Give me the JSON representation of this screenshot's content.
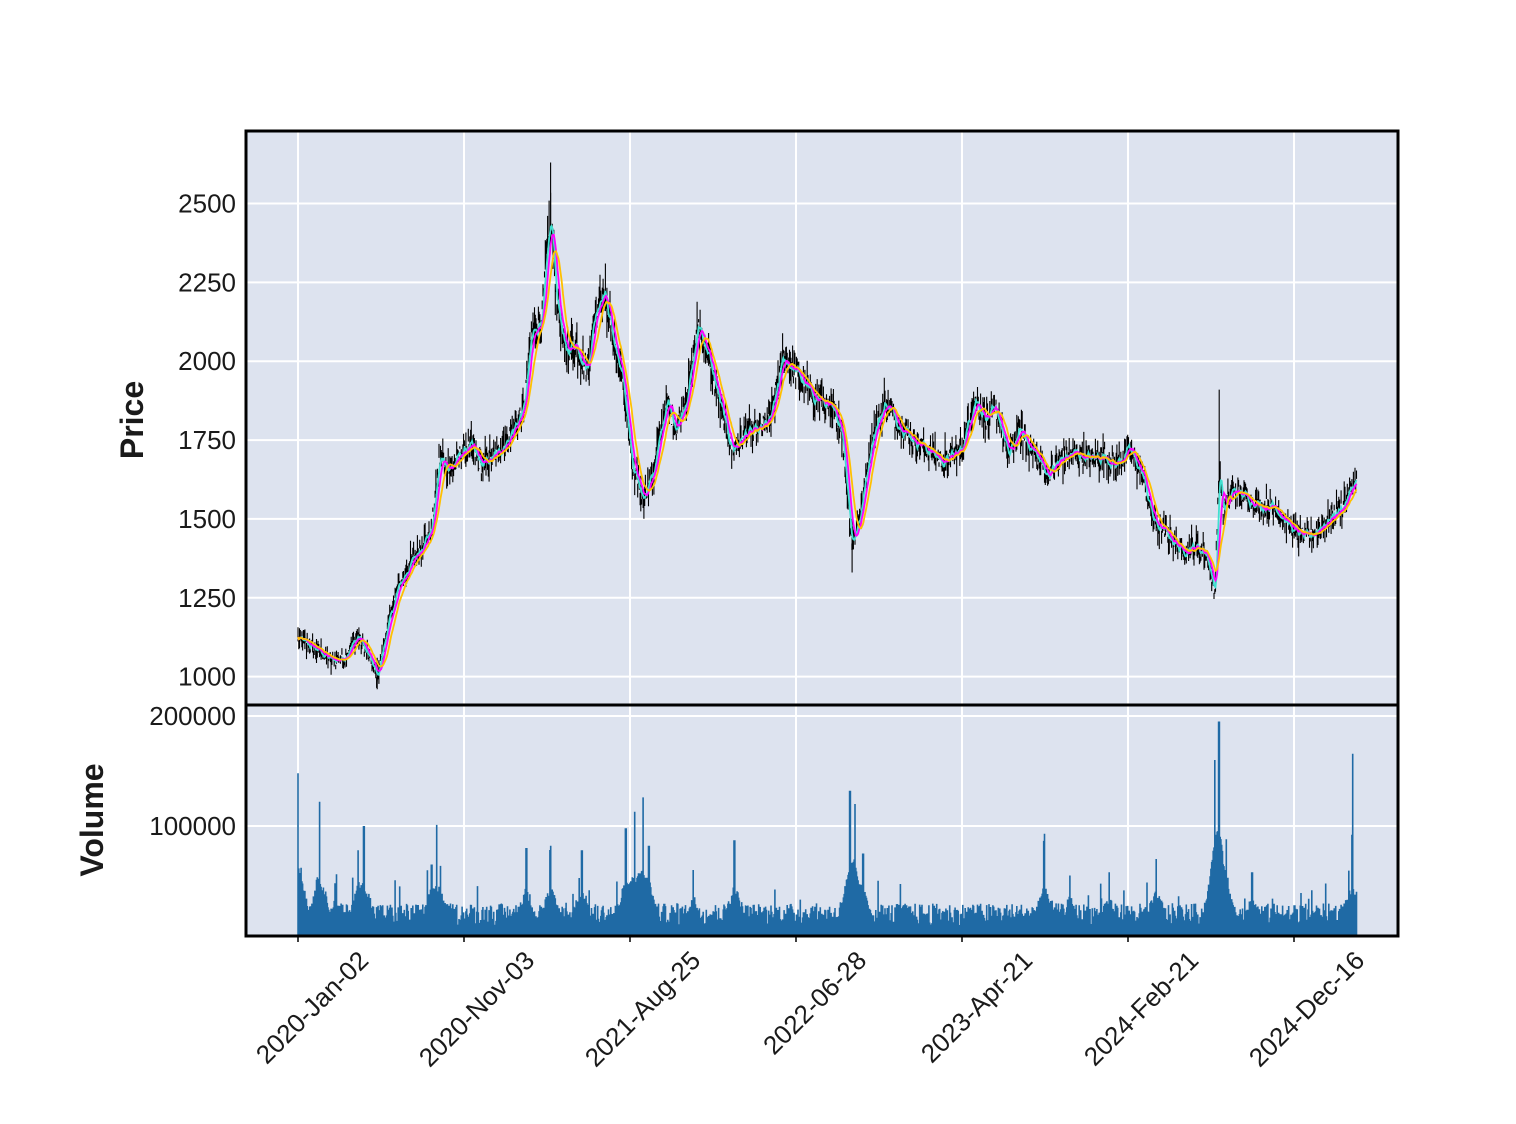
{
  "chart_data": {
    "type": "candlestick",
    "style": {
      "panel_background": "#dde3ef",
      "grid_color": "#ffffff",
      "frame_color": "#000000",
      "candle_color": "#000000",
      "volume_color": "#1f6aa5",
      "mav_colors": [
        "#40e0d0",
        "#ff00ff",
        "#ffc000"
      ]
    },
    "price_axis": {
      "label": "Price",
      "ylim": [
        910,
        2730
      ],
      "ticks": [
        1000,
        1250,
        1500,
        1750,
        2000,
        2250,
        2500
      ],
      "tick_labels": [
        "1000",
        "1250",
        "1500",
        "1750",
        "2000",
        "2250",
        "2500"
      ]
    },
    "volume_axis": {
      "label": "Volume",
      "ylim": [
        0,
        210000
      ],
      "ticks": [
        100000,
        200000
      ],
      "tick_labels": [
        "100000",
        "200000"
      ]
    },
    "x_axis": {
      "date_range": [
        "2020-01-02",
        "2025-04-10"
      ],
      "ticks": [
        "2020-01-02",
        "2020-11-03",
        "2021-08-25",
        "2022-06-28",
        "2023-04-21",
        "2024-02-21",
        "2024-12-16"
      ],
      "tick_labels": [
        "2020-Jan-02",
        "2020-Nov-03",
        "2021-Aug-25",
        "2022-06-28",
        "2023-Apr-21",
        "2024-Feb-21",
        "2024-Dec-16"
      ]
    },
    "price_series": {
      "name": "close",
      "points": [
        [
          "2020-01-02",
          1120
        ],
        [
          "2020-02-01",
          1090
        ],
        [
          "2020-03-05",
          1050
        ],
        [
          "2020-03-25",
          1060
        ],
        [
          "2020-04-20",
          1130
        ],
        [
          "2020-05-10",
          1060
        ],
        [
          "2020-05-25",
          1000
        ],
        [
          "2020-06-10",
          1140
        ],
        [
          "2020-07-01",
          1280
        ],
        [
          "2020-07-25",
          1360
        ],
        [
          "2020-08-15",
          1420
        ],
        [
          "2020-09-01",
          1470
        ],
        [
          "2020-09-15",
          1690
        ],
        [
          "2020-10-05",
          1660
        ],
        [
          "2020-10-25",
          1710
        ],
        [
          "2020-11-10",
          1730
        ],
        [
          "2020-12-01",
          1670
        ],
        [
          "2020-12-25",
          1700
        ],
        [
          "2021-01-20",
          1760
        ],
        [
          "2021-02-15",
          1850
        ],
        [
          "2021-03-01",
          2080
        ],
        [
          "2021-03-20",
          2140
        ],
        [
          "2021-04-05",
          2460
        ],
        [
          "2021-04-15",
          2220
        ],
        [
          "2021-04-30",
          2030
        ],
        [
          "2021-05-20",
          2060
        ],
        [
          "2021-06-10",
          1970
        ],
        [
          "2021-06-25",
          2160
        ],
        [
          "2021-07-10",
          2230
        ],
        [
          "2021-07-30",
          2050
        ],
        [
          "2021-08-15",
          1930
        ],
        [
          "2021-09-01",
          1650
        ],
        [
          "2021-09-20",
          1570
        ],
        [
          "2021-10-10",
          1660
        ],
        [
          "2021-11-01",
          1870
        ],
        [
          "2021-11-20",
          1790
        ],
        [
          "2021-12-10",
          1900
        ],
        [
          "2021-12-30",
          2120
        ],
        [
          "2022-01-20",
          1990
        ],
        [
          "2022-02-10",
          1840
        ],
        [
          "2022-03-01",
          1720
        ],
        [
          "2022-03-25",
          1770
        ],
        [
          "2022-04-20",
          1780
        ],
        [
          "2022-05-10",
          1820
        ],
        [
          "2022-06-01",
          2010
        ],
        [
          "2022-06-28",
          1960
        ],
        [
          "2022-07-20",
          1900
        ],
        [
          "2022-08-20",
          1860
        ],
        [
          "2022-09-15",
          1800
        ],
        [
          "2022-10-05",
          1420
        ],
        [
          "2022-10-20",
          1520
        ],
        [
          "2022-11-10",
          1760
        ],
        [
          "2022-12-05",
          1870
        ],
        [
          "2022-12-25",
          1810
        ],
        [
          "2023-01-25",
          1750
        ],
        [
          "2023-02-20",
          1720
        ],
        [
          "2023-03-20",
          1680
        ],
        [
          "2023-04-21",
          1720
        ],
        [
          "2023-05-15",
          1880
        ],
        [
          "2023-06-05",
          1820
        ],
        [
          "2023-06-25",
          1840
        ],
        [
          "2023-07-15",
          1700
        ],
        [
          "2023-08-05",
          1780
        ],
        [
          "2023-09-01",
          1710
        ],
        [
          "2023-09-25",
          1640
        ],
        [
          "2023-10-20",
          1690
        ],
        [
          "2023-11-15",
          1710
        ],
        [
          "2023-12-10",
          1690
        ],
        [
          "2024-01-05",
          1700
        ],
        [
          "2024-01-25",
          1670
        ],
        [
          "2024-02-21",
          1720
        ],
        [
          "2024-03-15",
          1640
        ],
        [
          "2024-04-05",
          1490
        ],
        [
          "2024-04-30",
          1450
        ],
        [
          "2024-05-25",
          1400
        ],
        [
          "2024-06-20",
          1410
        ],
        [
          "2024-07-10",
          1390
        ],
        [
          "2024-07-25",
          1260
        ],
        [
          "2024-08-02",
          1660
        ],
        [
          "2024-08-10",
          1520
        ],
        [
          "2024-08-25",
          1590
        ],
        [
          "2024-09-20",
          1570
        ],
        [
          "2024-10-15",
          1540
        ],
        [
          "2024-11-10",
          1540
        ],
        [
          "2024-12-16",
          1460
        ],
        [
          "2025-01-10",
          1440
        ],
        [
          "2025-02-05",
          1480
        ],
        [
          "2025-02-25",
          1510
        ],
        [
          "2025-03-15",
          1540
        ],
        [
          "2025-04-10",
          1640
        ]
      ]
    },
    "volume_series": {
      "name": "volume",
      "baseline": 22000,
      "spikes": [
        [
          "2020-01-02",
          148000
        ],
        [
          "2020-01-08",
          62000
        ],
        [
          "2020-02-10",
          122000
        ],
        [
          "2020-03-10",
          48000
        ],
        [
          "2020-05-01",
          100000
        ],
        [
          "2020-04-20",
          78000
        ],
        [
          "2020-09-10",
          101000
        ],
        [
          "2020-09-01",
          65000
        ],
        [
          "2021-02-20",
          80000
        ],
        [
          "2021-04-05",
          82000
        ],
        [
          "2021-06-01",
          78000
        ],
        [
          "2021-08-20",
          98000
        ],
        [
          "2021-09-05",
          113000
        ],
        [
          "2021-09-20",
          126000
        ],
        [
          "2021-10-01",
          82000
        ],
        [
          "2021-12-20",
          60000
        ],
        [
          "2022-03-05",
          87000
        ],
        [
          "2022-10-01",
          132000
        ],
        [
          "2022-10-10",
          120000
        ],
        [
          "2022-10-25",
          75000
        ],
        [
          "2023-09-20",
          93000
        ],
        [
          "2023-11-05",
          55000
        ],
        [
          "2024-01-15",
          58000
        ],
        [
          "2024-04-10",
          70000
        ],
        [
          "2024-07-25",
          160000
        ],
        [
          "2024-08-02",
          195000
        ],
        [
          "2024-08-15",
          88000
        ],
        [
          "2024-10-01",
          58000
        ],
        [
          "2025-04-01",
          92000
        ]
      ]
    }
  }
}
